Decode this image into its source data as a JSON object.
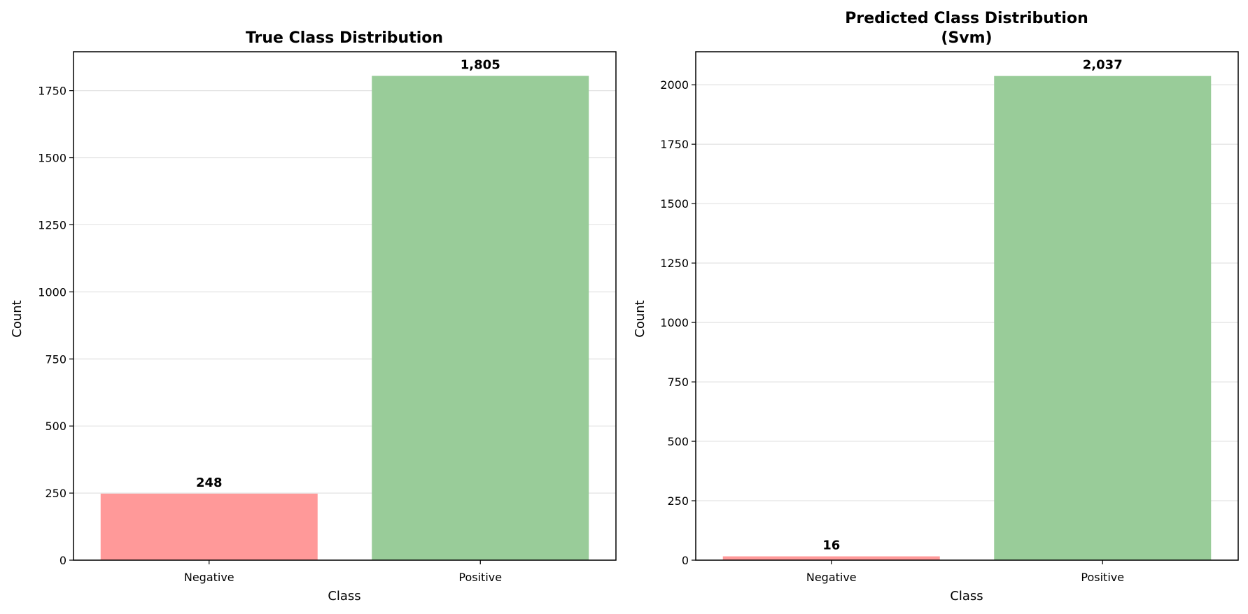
{
  "chart_data": [
    {
      "type": "bar",
      "title": "True Class Distribution",
      "title_line2": "",
      "xlabel": "Class",
      "ylabel": "Count",
      "categories": [
        "Negative",
        "Positive"
      ],
      "values": [
        248,
        1805
      ],
      "data_labels": [
        "248",
        "1,805"
      ],
      "ylim": [
        0,
        1895
      ],
      "yticks": [
        0,
        250,
        500,
        750,
        1000,
        1250,
        1500,
        1750
      ],
      "ytick_labels": [
        "0",
        "250",
        "500",
        "750",
        "1000",
        "1250",
        "1500",
        "1750"
      ],
      "colors": [
        "#ff9999",
        "#99cc99"
      ],
      "grid": "y"
    },
    {
      "type": "bar",
      "title": "Predicted Class Distribution",
      "title_line2": "(Svm)",
      "xlabel": "Class",
      "ylabel": "Count",
      "categories": [
        "Negative",
        "Positive"
      ],
      "values": [
        16,
        2037
      ],
      "data_labels": [
        "16",
        "2,037"
      ],
      "ylim": [
        0,
        2139
      ],
      "yticks": [
        0,
        250,
        500,
        750,
        1000,
        1250,
        1500,
        1750,
        2000
      ],
      "ytick_labels": [
        "0",
        "250",
        "500",
        "750",
        "1000",
        "1250",
        "1500",
        "1750",
        "2000"
      ],
      "colors": [
        "#ff9999",
        "#99cc99"
      ],
      "grid": "y"
    }
  ]
}
